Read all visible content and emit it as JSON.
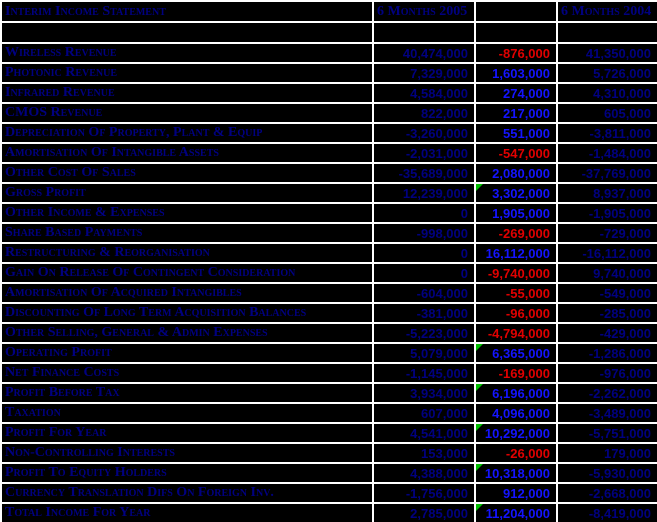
{
  "colors": {
    "background": "#000000",
    "grid": "#ffffff",
    "label": "#000080",
    "dark_value": "#000080",
    "positive": "#1414ff",
    "negative": "#e00000",
    "indicator": "#00c000"
  },
  "table": {
    "headers": {
      "title": "Interim Income Statement",
      "col_2005": "6 Months 2005",
      "col_variance": "",
      "col_2004": "6 Months 2004"
    },
    "rows": [
      {
        "label": "Wireless Revenue",
        "value_2005": "40,474,000",
        "variance": "-876,000",
        "value_2004": "41,350,000",
        "indicator": false
      },
      {
        "label": "Photonic Revenue",
        "value_2005": "7,329,000",
        "variance": "1,603,000",
        "value_2004": "5,726,000",
        "indicator": false
      },
      {
        "label": "Infrared Revenue",
        "value_2005": "4,584,000",
        "variance": "274,000",
        "value_2004": "4,310,000",
        "indicator": false
      },
      {
        "label": "CMOS Revenue",
        "value_2005": "822,000",
        "variance": "217,000",
        "value_2004": "605,000",
        "indicator": false
      },
      {
        "label": "Depreciation Of Property, Plant & Equip",
        "value_2005": "-3,260,000",
        "variance": "551,000",
        "value_2004": "-3,811,000",
        "indicator": false
      },
      {
        "label": "Amortisation Of Intangible Assets",
        "value_2005": "-2,031,000",
        "variance": "-547,000",
        "value_2004": "-1,484,000",
        "indicator": false
      },
      {
        "label": "Other Cost Of Sales",
        "value_2005": "-35,689,000",
        "variance": "2,080,000",
        "value_2004": "-37,769,000",
        "indicator": false
      },
      {
        "label": "Gross Profit",
        "value_2005": "12,239,000",
        "variance": "3,302,000",
        "value_2004": "8,937,000",
        "indicator": true
      },
      {
        "label": "Other Income & Expenses",
        "value_2005": "0",
        "variance": "1,905,000",
        "value_2004": "-1,905,000",
        "indicator": false
      },
      {
        "label": "Share Based Payments",
        "value_2005": "-998,000",
        "variance": "-269,000",
        "value_2004": "-729,000",
        "indicator": false
      },
      {
        "label": "Restructuring & Reorganisation",
        "value_2005": "0",
        "variance": "16,112,000",
        "value_2004": "-16,112,000",
        "indicator": false
      },
      {
        "label": "Gain On Release Of Contingent Consideration",
        "value_2005": "0",
        "variance": "-9,740,000",
        "value_2004": "9,740,000",
        "indicator": false
      },
      {
        "label": "Amortisation Of Acquired Intangibles",
        "value_2005": "-604,000",
        "variance": "-55,000",
        "value_2004": "-549,000",
        "indicator": false
      },
      {
        "label": "Discounting Of Long Term Acquisition Balances",
        "value_2005": "-381,000",
        "variance": "-96,000",
        "value_2004": "-285,000",
        "indicator": false
      },
      {
        "label": "Other Selling, General & Admin Expenses",
        "value_2005": "-5,223,000",
        "variance": "-4,794,000",
        "value_2004": "-429,000",
        "indicator": false
      },
      {
        "label": "Operating Profit",
        "value_2005": "5,079,000",
        "variance": "6,365,000",
        "value_2004": "-1,286,000",
        "indicator": true
      },
      {
        "label": "Net Finance Costs",
        "value_2005": "-1,145,000",
        "variance": "-169,000",
        "value_2004": "-976,000",
        "indicator": false
      },
      {
        "label": "Profit Before Tax",
        "value_2005": "3,934,000",
        "variance": "6,196,000",
        "value_2004": "-2,262,000",
        "indicator": true
      },
      {
        "label": "Taxation",
        "value_2005": "607,000",
        "variance": "4,096,000",
        "value_2004": "-3,489,000",
        "indicator": false
      },
      {
        "label": "Profit For Year",
        "value_2005": "4,541,000",
        "variance": "10,292,000",
        "value_2004": "-5,751,000",
        "indicator": true
      },
      {
        "label": "Non-Controlling Interests",
        "value_2005": "153,000",
        "variance": "-26,000",
        "value_2004": "179,000",
        "indicator": false
      },
      {
        "label": "Profit To Equity Holders",
        "value_2005": "4,388,000",
        "variance": "10,318,000",
        "value_2004": "-5,930,000",
        "indicator": true
      },
      {
        "label": "Currency Translation Difs On Foreign Inv.",
        "value_2005": "-1,756,000",
        "variance": "912,000",
        "value_2004": "-2,668,000",
        "indicator": false
      },
      {
        "label": "Total Income For Year",
        "value_2005": "2,785,000",
        "variance": "11,204,000",
        "value_2004": "-8,419,000",
        "indicator": true
      }
    ]
  }
}
